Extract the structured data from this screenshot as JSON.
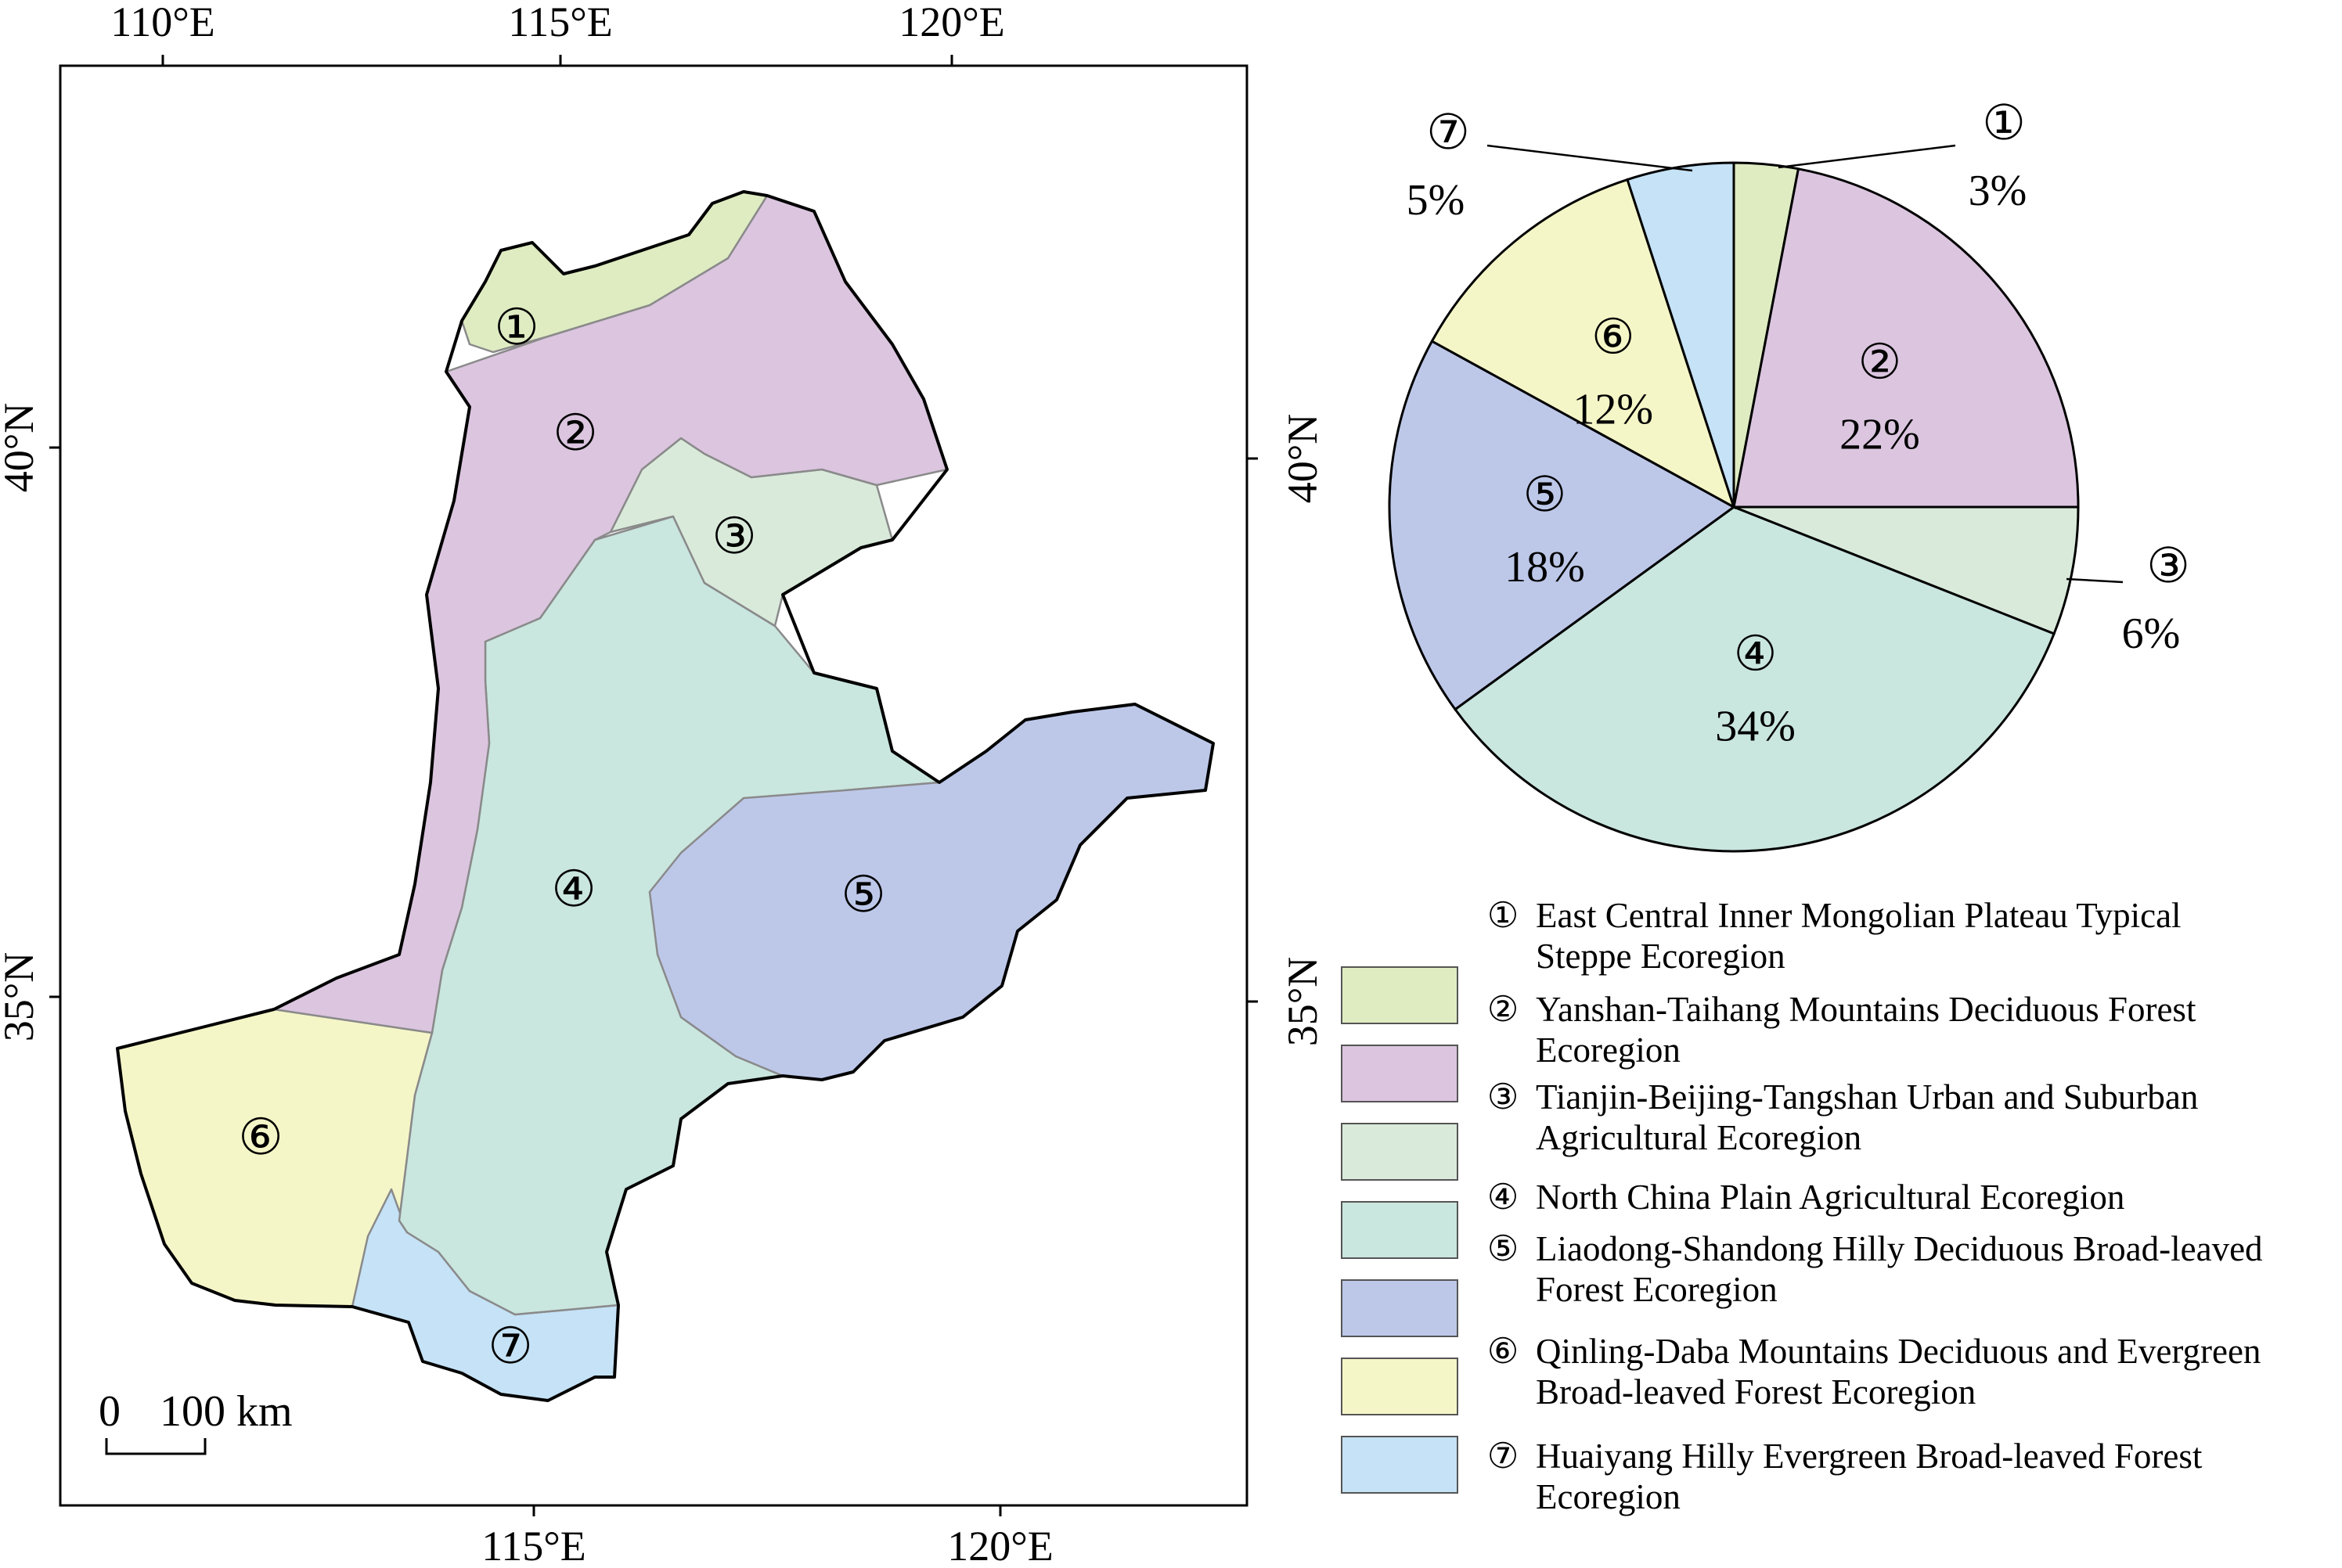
{
  "map": {
    "top_ticks": [
      "110°E",
      "115°E",
      "120°E"
    ],
    "bottom_ticks": [
      "115°E",
      "120°E"
    ],
    "left_ticks": [
      "40°N",
      "35°N"
    ],
    "right_ticks": [
      "40°N",
      "35°N"
    ],
    "scale_bar": {
      "zero": "0",
      "distance": "100 km"
    },
    "region_labels": [
      "①",
      "②",
      "③",
      "④",
      "⑤",
      "⑥",
      "⑦"
    ]
  },
  "colors": {
    "r1": "#dfecc2",
    "r2": "#dbc5df",
    "r3": "#d9eadb",
    "r4": "#c9e6df",
    "r5": "#bdc8e9",
    "r6": "#f5f6c7",
    "r7": "#c5e2f6",
    "border": "#000000",
    "inner_border": "#8a8a8a"
  },
  "chart_data": {
    "type": "pie",
    "title": "",
    "start": "top",
    "direction": "clockwise",
    "slices": [
      {
        "label": "①",
        "value": 3,
        "display": "3%",
        "color": "#dfecc2"
      },
      {
        "label": "②",
        "value": 22,
        "display": "22%",
        "color": "#dbc5df"
      },
      {
        "label": "③",
        "value": 6,
        "display": "6%",
        "color": "#d9eadb"
      },
      {
        "label": "④",
        "value": 34,
        "display": "34%",
        "color": "#c9e6df"
      },
      {
        "label": "⑤",
        "value": 18,
        "display": "18%",
        "color": "#bdc8e9"
      },
      {
        "label": "⑥",
        "value": 12,
        "display": "12%",
        "color": "#f5f6c7"
      },
      {
        "label": "⑦",
        "value": 5,
        "display": "5%",
        "color": "#c5e2f6"
      }
    ]
  },
  "legend": {
    "items": [
      {
        "num": "①",
        "lines": [
          "East Central Inner Mongolian Plateau Typical",
          "Steppe Ecoregion"
        ],
        "color": "#dfecc2"
      },
      {
        "num": "②",
        "lines": [
          "Yanshan-Taihang Mountains Deciduous Forest",
          "Ecoregion"
        ],
        "color": "#dbc5df"
      },
      {
        "num": "③",
        "lines": [
          "Tianjin-Beijing-Tangshan Urban and Suburban",
          "Agricultural Ecoregion"
        ],
        "color": "#d9eadb"
      },
      {
        "num": "④",
        "lines": [
          "North China Plain Agricultural Ecoregion"
        ],
        "color": "#c9e6df"
      },
      {
        "num": "⑤",
        "lines": [
          "Liaodong-Shandong Hilly Deciduous Broad-leaved",
          "Forest Ecoregion"
        ],
        "color": "#bdc8e9"
      },
      {
        "num": "⑥",
        "lines": [
          "Qinling-Daba Mountains Deciduous and Evergreen",
          "Broad-leaved Forest Ecoregion"
        ],
        "color": "#f5f6c7"
      },
      {
        "num": "⑦",
        "lines": [
          "Huaiyang Hilly Evergreen Broad-leaved Forest",
          "Ecoregion"
        ],
        "color": "#c5e2f6"
      }
    ]
  }
}
